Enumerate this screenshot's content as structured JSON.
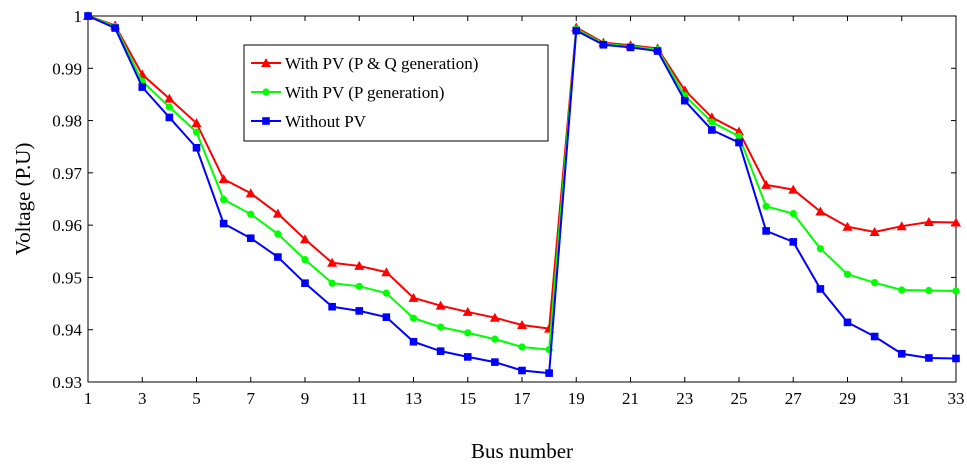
{
  "chart_data": {
    "type": "line",
    "xlabel": "Bus number",
    "ylabel": "Voltage (P.U)",
    "xlim": [
      1,
      33
    ],
    "ylim": [
      0.93,
      1.0
    ],
    "xticks": [
      1,
      3,
      5,
      7,
      9,
      11,
      13,
      15,
      17,
      19,
      21,
      23,
      25,
      27,
      29,
      31,
      33
    ],
    "yticks": [
      0.93,
      0.94,
      0.95,
      0.96,
      0.97,
      0.98,
      0.99,
      1
    ],
    "ytick_labels": [
      "0.93",
      "0.94",
      "0.95",
      "0.96",
      "0.97",
      "0.98",
      "0.99",
      "1"
    ],
    "grid": false,
    "legend_position": "top-left",
    "x": [
      1,
      2,
      3,
      4,
      5,
      6,
      7,
      8,
      9,
      10,
      11,
      12,
      13,
      14,
      15,
      16,
      17,
      18,
      19,
      20,
      21,
      22,
      23,
      24,
      25,
      26,
      27,
      28,
      29,
      30,
      31,
      32,
      33
    ],
    "series": [
      {
        "name": "With PV (P & Q generation)",
        "color": "#ff0000",
        "marker": "triangle",
        "values": [
          1.0,
          0.9982,
          0.9888,
          0.9842,
          0.9795,
          0.9688,
          0.9661,
          0.9622,
          0.9573,
          0.9528,
          0.9522,
          0.951,
          0.9461,
          0.9446,
          0.9434,
          0.9423,
          0.9409,
          0.9402,
          0.9978,
          0.9949,
          0.9944,
          0.9938,
          0.9858,
          0.9806,
          0.9779,
          0.9677,
          0.9668,
          0.9626,
          0.9597,
          0.9587,
          0.9598,
          0.9606,
          0.9605
        ]
      },
      {
        "name": "With PV (P generation)",
        "color": "#00ff00",
        "marker": "circle",
        "values": [
          1.0,
          0.998,
          0.9875,
          0.9826,
          0.9778,
          0.9649,
          0.9621,
          0.9583,
          0.9534,
          0.9489,
          0.9483,
          0.947,
          0.9422,
          0.9405,
          0.9394,
          0.9382,
          0.9367,
          0.9362,
          0.9975,
          0.9947,
          0.9942,
          0.9936,
          0.9848,
          0.9797,
          0.977,
          0.9636,
          0.9622,
          0.9555,
          0.9506,
          0.949,
          0.9476,
          0.9475,
          0.9474
        ]
      },
      {
        "name": "Without PV",
        "color": "#0000ff",
        "marker": "square",
        "values": [
          1.0,
          0.9977,
          0.9864,
          0.9806,
          0.9748,
          0.9603,
          0.9575,
          0.9539,
          0.9489,
          0.9444,
          0.9436,
          0.9424,
          0.9377,
          0.9359,
          0.9348,
          0.9338,
          0.9322,
          0.9317,
          0.9972,
          0.9945,
          0.994,
          0.9933,
          0.9838,
          0.9782,
          0.9758,
          0.9589,
          0.9568,
          0.9478,
          0.9414,
          0.9387,
          0.9354,
          0.9346,
          0.9345
        ]
      }
    ]
  }
}
